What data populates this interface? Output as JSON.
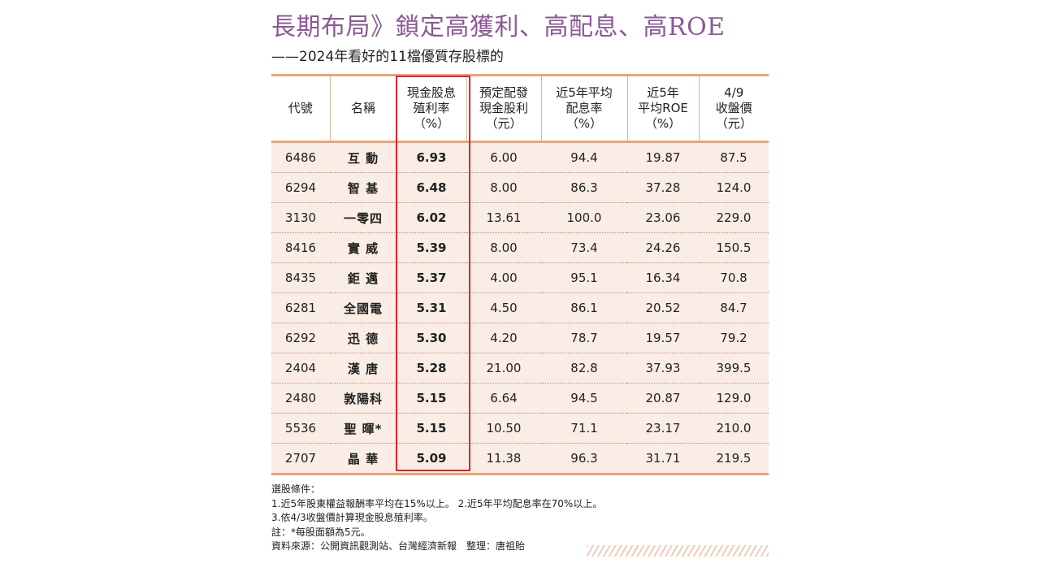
{
  "title": "長期布局》鎖定高獲利、高配息、高ROE",
  "subtitle": "——2024年看好的11檔優質存股標的",
  "table": {
    "headers": [
      [
        "代號"
      ],
      [
        "名稱"
      ],
      [
        "現金股息",
        "殖利率",
        "（%）"
      ],
      [
        "預定配發",
        "現金股利",
        "（元）"
      ],
      [
        "近5年平均",
        "配息率",
        "（%）"
      ],
      [
        "近5年",
        "平均ROE",
        "（%）"
      ],
      [
        "4/9",
        "收盤價",
        "（元）"
      ]
    ],
    "rows": [
      [
        "6486",
        "互 動",
        "6.93",
        "6.00",
        "94.4",
        "19.87",
        "87.5"
      ],
      [
        "6294",
        "智 基",
        "6.48",
        "8.00",
        "86.3",
        "37.28",
        "124.0"
      ],
      [
        "3130",
        "一零四",
        "6.02",
        "13.61",
        "100.0",
        "23.06",
        "229.0"
      ],
      [
        "8416",
        "實 威",
        "5.39",
        "8.00",
        "73.4",
        "24.26",
        "150.5"
      ],
      [
        "8435",
        "鉅 邁",
        "5.37",
        "4.00",
        "95.1",
        "16.34",
        "70.8"
      ],
      [
        "6281",
        "全國電",
        "5.31",
        "4.50",
        "86.1",
        "20.52",
        "84.7"
      ],
      [
        "6292",
        "迅 德",
        "5.30",
        "4.20",
        "78.7",
        "19.57",
        "79.2"
      ],
      [
        "2404",
        "漢 唐",
        "5.28",
        "21.00",
        "82.8",
        "37.93",
        "399.5"
      ],
      [
        "2480",
        "敦陽科",
        "5.15",
        "6.64",
        "94.5",
        "20.87",
        "129.0"
      ],
      [
        "5536",
        "聖 暉*",
        "5.15",
        "10.50",
        "71.1",
        "23.17",
        "210.0"
      ],
      [
        "2707",
        "晶 華",
        "5.09",
        "11.38",
        "96.3",
        "31.71",
        "219.5"
      ]
    ]
  },
  "notes": [
    "選股條件：",
    "1.近5年股東權益報酬率平均在15%以上。 2.近5年平均配息率在70%以上。",
    "3.依4/3收盤價計算現金股息殖利率。",
    "註：*每股面額為5元。",
    "資料來源：公開資訊觀測站、台灣經濟新報　整理：唐祖貽"
  ],
  "colors": {
    "title": "#8a5a94",
    "rule": "#e8a67b",
    "row_bg": "#f9ede6",
    "highlight": "#e0242f"
  }
}
